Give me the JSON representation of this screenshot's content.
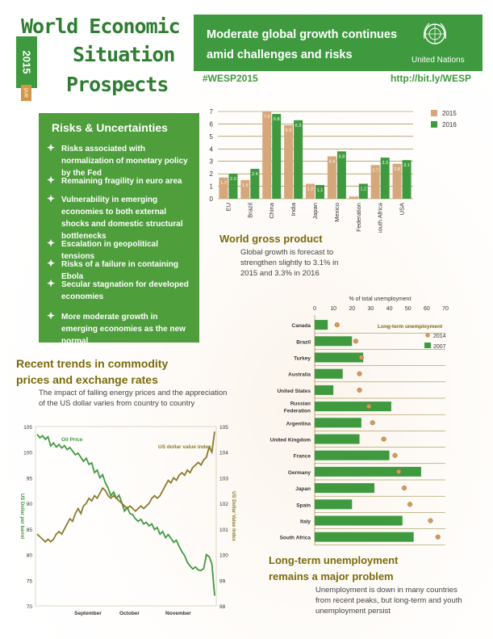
{
  "header": {
    "title_line1": "World Economic",
    "title_line2": "Situation",
    "title_and": "and",
    "title_line3": "Prospects",
    "year": "2015",
    "banner_headline": "Moderate global growth continues amid challenges and risks",
    "org_name": "United Nations",
    "hashtag": "#WESP2015",
    "link": "http://bit.ly/WESP"
  },
  "risks": {
    "title": "Risks & Uncertainties",
    "items": [
      "Risks associated with normalization of monetary policy by the Fed",
      "Remaining fragility in euro area",
      "Vulnerability in emerging economies to both external shocks and domestic structural bottlenecks",
      "Escalation in geopolitical tensions",
      "Risks of a failure in containing Ebola",
      "Secular stagnation for developed economies",
      "More moderate growth in emerging economies as the new normal"
    ]
  },
  "gdp_section": {
    "title": "World gross product",
    "body": "Global growth is forecast to strengthen slightly to 3.1% in 2015 and 3.3% in 2016"
  },
  "commodity_section": {
    "title": "Recent trends in commodity prices and exchange rates",
    "body": "The impact of falling energy prices and the appreciation of the US dollar varies from country to country"
  },
  "unemployment_section": {
    "title": "Long-term unemployment remains a major problem",
    "body": "Unemployment is down in many countries from recent peaks, but long-term and youth unemployment persist"
  },
  "colors": {
    "green": "#3f9a3f",
    "tan": "#d6a77a",
    "olive": "#8c7a2e",
    "dot": "#d49a5e",
    "title_olive": "#7a6a0c"
  },
  "chart_data": [
    {
      "type": "bar",
      "categories": [
        "EU",
        "Brazil",
        "China",
        "India",
        "Japan",
        "Mexico",
        "Russian Federation",
        "South Africa",
        "USA"
      ],
      "series": [
        {
          "name": "2015",
          "values": [
            1.7,
            1.5,
            7.0,
            5.9,
            1.2,
            3.4,
            0.2,
            2.7,
            2.8
          ]
        },
        {
          "name": "2016",
          "values": [
            2.0,
            2.4,
            6.8,
            6.3,
            1.1,
            3.8,
            1.2,
            3.3,
            3.1
          ]
        }
      ],
      "yticks": [
        "0",
        "1",
        "2",
        "3",
        "4",
        "5",
        "6",
        "7"
      ],
      "ylim": [
        0,
        7
      ],
      "legend_position": "top-right",
      "grid": true
    },
    {
      "type": "bar",
      "orientation": "horizontal",
      "xlabel": "% of total unemployment",
      "xticks": [
        "0",
        "10",
        "20",
        "30",
        "40",
        "50",
        "60",
        "70"
      ],
      "xlim": [
        0,
        70
      ],
      "legend_title": "Long-term unemployment",
      "categories": [
        "Canada",
        "Brazil",
        "Turkey",
        "Australia",
        "United States",
        "Russian Federation",
        "Argentina",
        "United Kingdom",
        "France",
        "Germany",
        "Japan",
        "Spain",
        "Italy",
        "South Africa"
      ],
      "series": [
        {
          "name": "2014",
          "marker": "dot",
          "values": [
            12,
            22,
            25,
            24,
            24,
            29,
            31,
            37,
            43,
            45,
            48,
            51,
            62,
            66
          ]
        },
        {
          "name": "2007",
          "marker": "bar",
          "values": [
            7,
            20,
            26,
            15,
            10,
            41,
            25,
            24,
            40,
            57,
            32,
            20,
            47,
            53
          ]
        }
      ],
      "legend_position": "top-right"
    },
    {
      "type": "line",
      "x_ticks": [
        "September",
        "October",
        "November"
      ],
      "left_axis": {
        "label": "US Dollar per barrel",
        "ticks": [
          "70",
          "75",
          "80",
          "85",
          "90",
          "95",
          "100",
          "105"
        ],
        "ylim": [
          70,
          105
        ]
      },
      "right_axis": {
        "label": "US Dollar Value Index",
        "ticks": [
          "98",
          "99",
          "100",
          "101",
          "102",
          "103",
          "104",
          "105"
        ],
        "ylim": [
          98,
          105
        ]
      },
      "series": [
        {
          "name": "Oil Price",
          "axis": "left",
          "values": [
            103.5,
            102.8,
            103.2,
            102.5,
            103.0,
            101.2,
            101.8,
            101.0,
            101.5,
            100.8,
            101.3,
            100.5,
            100.9,
            100.2,
            99.5,
            99.8,
            99.0,
            98.2,
            98.8,
            97.6,
            97.9,
            96.0,
            96.5,
            95.0,
            95.6,
            94.0,
            93.0,
            91.5,
            92.2,
            91.0,
            91.6,
            90.2,
            88.5,
            89.2,
            88.0,
            87.8,
            87.0,
            86.5,
            86.9,
            86.0,
            86.3,
            85.6,
            86.0,
            84.9,
            85.3,
            84.0,
            84.5,
            83.3,
            83.9,
            83.2,
            82.4,
            82.8,
            81.6,
            80.6,
            79.8,
            78.5,
            77.8,
            77.2,
            77.6,
            77.0,
            76.9,
            77.3,
            80.0,
            79.6,
            78.2,
            72.0
          ]
        },
        {
          "name": "US dollar value index",
          "axis": "right",
          "values": [
            100.8,
            100.7,
            100.6,
            100.5,
            100.6,
            100.5,
            100.6,
            100.8,
            100.9,
            100.8,
            101.0,
            101.2,
            101.4,
            101.3,
            101.6,
            101.8,
            101.6,
            101.9,
            102.0,
            102.2,
            102.1,
            102.3,
            102.2,
            102.4,
            102.6,
            102.5,
            102.3,
            102.2,
            102.3,
            102.2,
            102.1,
            102.0,
            101.9,
            101.8,
            101.9,
            101.8,
            101.7,
            101.8,
            101.9,
            101.8,
            101.9,
            102.0,
            102.2,
            102.3,
            102.2,
            102.3,
            102.5,
            102.7,
            102.9,
            102.8,
            103.0,
            102.9,
            103.1,
            103.2,
            103.1,
            103.3,
            103.2,
            103.4,
            103.5,
            103.6,
            103.5,
            103.7,
            103.8,
            104.2,
            104.0,
            104.8
          ]
        }
      ],
      "legend_position": "inline"
    }
  ]
}
